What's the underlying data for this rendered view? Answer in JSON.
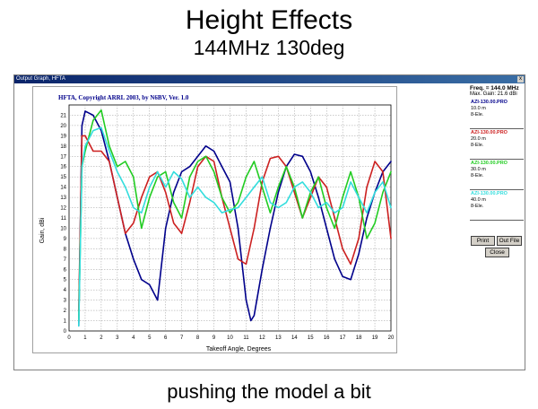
{
  "slide": {
    "title": "Height Effects",
    "subtitle": "144MHz 130deg",
    "caption": "pushing the model a bit"
  },
  "window": {
    "title": "Output Graph, HFTA",
    "close_glyph": "x"
  },
  "panel": {
    "freq": "Freq. = 144.0 MHz",
    "max_gain": "Max. Gain: 21.6 dBi",
    "legend": [
      {
        "name": "AZI-130.00.PRO",
        "height": "10.0 m",
        "elements": "8-Ele.",
        "color": "#00008b"
      },
      {
        "name": "AZI-130.00.PRO",
        "height": "20.0 m",
        "elements": "8-Ele.",
        "color": "#cc2020"
      },
      {
        "name": "AZI-130.00.PRO",
        "height": "30.0 m",
        "elements": "8-Ele.",
        "color": "#22cc22"
      },
      {
        "name": "AZI-130.00.PRO",
        "height": "40.0 m",
        "elements": "8-Ele.",
        "color": "#33dddd"
      }
    ],
    "buttons": {
      "print": "Print",
      "out_file": "Out File",
      "close": "Close"
    }
  },
  "chart_data": {
    "type": "line",
    "title": "HFTA, Copyright ARRL 2003, by N6BV, Ver. 1.0",
    "xlabel": "Takeoff Angle, Degrees",
    "ylabel": "Gain, dBi",
    "xlim": [
      0,
      20
    ],
    "ylim": [
      0,
      22
    ],
    "xticks": [
      0,
      1,
      2,
      3,
      4,
      5,
      6,
      7,
      8,
      9,
      10,
      11,
      12,
      13,
      14,
      15,
      16,
      17,
      18,
      19,
      20
    ],
    "yticks": [
      0,
      1,
      2,
      3,
      4,
      5,
      6,
      7,
      8,
      9,
      10,
      11,
      12,
      13,
      14,
      15,
      16,
      17,
      18,
      19,
      20,
      21
    ],
    "grid": true,
    "series": [
      {
        "color": "#00008b",
        "x": [
          0.6,
          0.8,
          1.0,
          1.5,
          2.0,
          2.5,
          3.0,
          3.5,
          4.0,
          4.5,
          5.0,
          5.5,
          6.0,
          6.5,
          7.0,
          7.5,
          8.0,
          8.5,
          9.0,
          9.5,
          10.0,
          10.5,
          11.0,
          11.3,
          11.5,
          12.0,
          12.5,
          13.0,
          13.5,
          14.0,
          14.5,
          15.0,
          15.5,
          16.0,
          16.5,
          17.0,
          17.5,
          18.0,
          18.5,
          19.0,
          19.5,
          20.0
        ],
        "y": [
          0.5,
          20,
          21.4,
          21,
          19.5,
          16.5,
          13,
          9.5,
          7,
          5,
          4.5,
          3,
          10,
          13.5,
          15.5,
          16,
          17,
          18,
          17.5,
          16,
          14.5,
          10,
          3,
          1,
          1.5,
          6,
          10,
          13.5,
          16,
          17.2,
          17,
          15.5,
          13,
          10,
          7,
          5.3,
          5,
          7.5,
          11,
          13.5,
          15.5,
          16.5
        ]
      },
      {
        "color": "#cc2020",
        "x": [
          0.6,
          0.8,
          1.0,
          1.5,
          2.0,
          2.5,
          3.0,
          3.5,
          4.0,
          4.5,
          5.0,
          5.5,
          6.0,
          6.5,
          7.0,
          7.5,
          8.0,
          8.5,
          9.0,
          9.5,
          10.0,
          10.5,
          11.0,
          11.5,
          12.0,
          12.5,
          13.0,
          13.5,
          14.0,
          14.5,
          15.0,
          15.5,
          16.0,
          16.5,
          17.0,
          17.5,
          18.0,
          18.5,
          19.0,
          19.5,
          20.0
        ],
        "y": [
          2,
          19,
          19,
          17.5,
          17.5,
          16.5,
          13,
          9.5,
          10.5,
          13,
          15,
          15.5,
          13.5,
          10.5,
          9.5,
          12.5,
          16,
          17,
          16.5,
          13,
          10,
          7,
          6.5,
          10,
          14.5,
          16.8,
          17,
          16,
          13.5,
          11,
          13,
          15,
          14,
          11,
          8,
          6.5,
          9,
          14,
          16.5,
          15.5,
          9
        ]
      },
      {
        "color": "#22cc22",
        "x": [
          0.6,
          0.8,
          1.0,
          1.5,
          2.0,
          2.5,
          3.0,
          3.5,
          4.0,
          4.5,
          5.0,
          5.5,
          6.0,
          6.5,
          7.0,
          7.5,
          8.0,
          8.5,
          9.0,
          9.5,
          10.0,
          10.5,
          11.0,
          11.5,
          12.0,
          12.5,
          13.0,
          13.5,
          14.0,
          14.5,
          15.0,
          15.5,
          16.0,
          16.5,
          17.0,
          17.5,
          18.0,
          18.5,
          19.0,
          19.5,
          20.0
        ],
        "y": [
          1,
          16,
          17.5,
          20.5,
          21.5,
          18,
          16,
          16.5,
          15,
          10,
          13,
          15,
          15.5,
          12.5,
          11,
          15,
          16.5,
          17,
          15.5,
          13,
          11.5,
          12.5,
          15,
          16.5,
          14,
          11.5,
          14,
          16,
          14,
          11,
          13.5,
          15,
          12,
          10,
          13,
          15.5,
          13,
          9,
          10.5,
          13.5,
          15.5
        ]
      },
      {
        "color": "#33dddd",
        "x": [
          0.6,
          0.8,
          1.0,
          1.5,
          2.0,
          2.5,
          3.0,
          3.5,
          4.0,
          4.5,
          5.0,
          5.5,
          6.0,
          6.5,
          7.0,
          7.5,
          8.0,
          8.5,
          9.0,
          9.5,
          10.0,
          10.5,
          11.0,
          11.5,
          12.0,
          12.5,
          13.0,
          13.5,
          14.0,
          14.5,
          15.0,
          15.5,
          16.0,
          16.5,
          17.0,
          17.5,
          18.0,
          18.5,
          19.0,
          19.5,
          20.0
        ],
        "y": [
          0.5,
          16,
          18,
          19.5,
          19.8,
          17.5,
          15.5,
          14,
          12,
          11.5,
          14,
          15.5,
          14,
          15.5,
          14.8,
          13,
          14,
          13,
          12.5,
          11.5,
          11.8,
          12,
          13,
          14,
          15,
          12.5,
          12,
          12.5,
          14,
          14.5,
          13.5,
          12,
          12.5,
          11.5,
          12,
          14.5,
          13,
          11.5,
          13.5,
          14.5,
          12
        ]
      }
    ]
  }
}
